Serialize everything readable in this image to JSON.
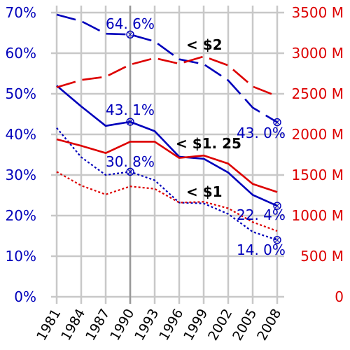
{
  "chart_data": {
    "type": "line",
    "x": [
      1981,
      1984,
      1987,
      1990,
      1993,
      1996,
      1999,
      2002,
      2005,
      2008
    ],
    "x_tick_labels": [
      "1981",
      "1984",
      "1987",
      "1990",
      "1993",
      "1996",
      "1999",
      "2002",
      "2005",
      "2008"
    ],
    "left_axis": {
      "ylim": [
        0,
        70
      ],
      "ticks": [
        0,
        10,
        20,
        30,
        40,
        50,
        60,
        70
      ],
      "tick_labels": [
        "0%",
        "10%",
        "20%",
        "30%",
        "40%",
        "50%",
        "60%",
        "70%"
      ]
    },
    "right_axis": {
      "ylim": [
        0,
        3500
      ],
      "ticks": [
        0,
        500,
        1000,
        1500,
        2000,
        2500,
        3000,
        3500
      ],
      "tick_labels": [
        "0",
        "500  M",
        "1000  M",
        "1500  M",
        "2000  M",
        "2500  M",
        "3000  M",
        "3500  M"
      ]
    },
    "grid": true,
    "vertical_marker_x": 1990,
    "series": [
      {
        "group": "< $2",
        "axis": "left",
        "style": "dashed",
        "color": "#0000bb",
        "values": [
          69.5,
          67.9,
          64.8,
          64.6,
          62.9,
          58.5,
          57.3,
          53.3,
          46.6,
          43.0
        ]
      },
      {
        "group": "< $1.25",
        "axis": "left",
        "style": "solid",
        "color": "#0000bb",
        "values": [
          52.0,
          46.9,
          42.1,
          43.1,
          40.8,
          34.5,
          34.0,
          30.6,
          25.1,
          22.4
        ]
      },
      {
        "group": "< $1",
        "axis": "left",
        "style": "dotted",
        "color": "#0000bb",
        "values": [
          41.6,
          34.4,
          30.0,
          30.8,
          28.7,
          23.2,
          23.0,
          20.4,
          16.0,
          14.0
        ]
      },
      {
        "group": "< $2",
        "axis": "right",
        "style": "dashed",
        "color": "#dd0000",
        "values": [
          2580,
          2670,
          2710,
          2860,
          2940,
          2870,
          2960,
          2850,
          2590,
          2470
        ]
      },
      {
        "group": "< $1.25",
        "axis": "right",
        "style": "solid",
        "color": "#dd0000",
        "values": [
          1940,
          1860,
          1770,
          1910,
          1910,
          1710,
          1740,
          1640,
          1390,
          1290
        ]
      },
      {
        "group": "< $1",
        "axis": "right",
        "style": "dotted",
        "color": "#dd0000",
        "values": [
          1540,
          1370,
          1260,
          1360,
          1330,
          1160,
          1170,
          1090,
          920,
          810
        ]
      }
    ],
    "highlighted_points": [
      {
        "series": 0,
        "index": 3,
        "label": "64. 6%"
      },
      {
        "series": 0,
        "index": 9,
        "label": "43. 0%"
      },
      {
        "series": 1,
        "index": 3,
        "label": "43. 1%"
      },
      {
        "series": 1,
        "index": 9,
        "label": "22. 4%"
      },
      {
        "series": 2,
        "index": 3,
        "label": "30. 8%"
      },
      {
        "series": 2,
        "index": 9,
        "label": "14. 0%"
      }
    ],
    "annotations": [
      "< $2",
      "< $1. 25",
      "< $1"
    ]
  }
}
